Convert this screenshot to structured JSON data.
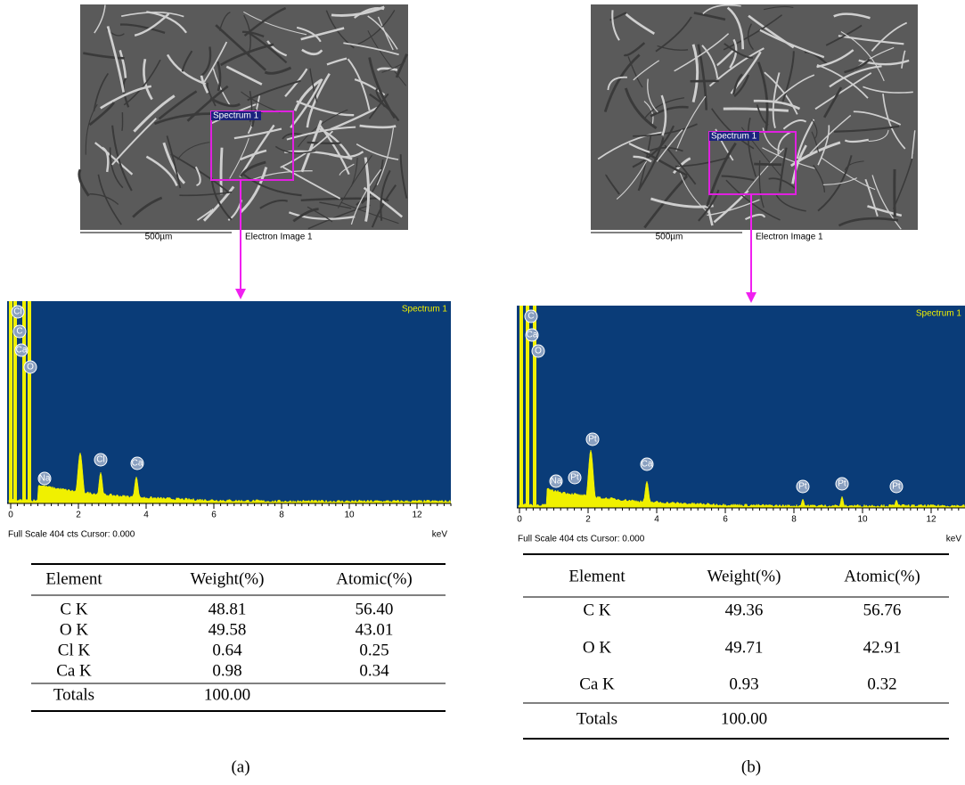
{
  "panels": [
    {
      "image": {
        "selection_label": "Spectrum 1",
        "scale_label": "500µm",
        "caption": "Electron Image 1"
      },
      "spectrum": {
        "title": "Spectrum 1",
        "axis_ticks": [
          0,
          2,
          4,
          6,
          8,
          10,
          12
        ],
        "unit": "keV",
        "footer": "Full Scale 404 cts Cursor: 0.000",
        "peak_labels": [
          "Cl",
          "C",
          "Ca",
          "O",
          "Na",
          "Cl",
          "Ca"
        ]
      },
      "table": {
        "header": [
          "Element",
          "Weight(%)",
          "Atomic(%)"
        ],
        "rows": [
          [
            "C  K",
            "48.81",
            "56.40"
          ],
          [
            "O  K",
            "49.58",
            "43.01"
          ],
          [
            "Cl  K",
            "0.64",
            "0.25"
          ],
          [
            "Ca  K",
            "0.98",
            "0.34"
          ]
        ],
        "totals": [
          "Totals",
          "100.00"
        ]
      },
      "label": "(a)"
    },
    {
      "image": {
        "selection_label": "Spectrum 1",
        "scale_label": "500µm",
        "caption": "Electron Image 1"
      },
      "spectrum": {
        "title": "Spectrum 1",
        "axis_ticks": [
          0,
          2,
          4,
          6,
          8,
          10,
          12
        ],
        "unit": "keV",
        "footer": "Full Scale 404 cts Cursor: 0.000",
        "peak_labels": [
          "C",
          "Ca",
          "O",
          "Na",
          "Pt",
          "Pt",
          "Ca",
          "Pt",
          "Pt",
          "Pt"
        ]
      },
      "table": {
        "header": [
          "Element",
          "Weight(%)",
          "Atomic(%)"
        ],
        "rows": [
          [
            "C  K",
            "49.36",
            "56.76"
          ],
          [
            "O  K",
            "49.71",
            "42.91"
          ],
          [
            "Ca  K",
            "0.93",
            "0.32"
          ]
        ],
        "totals": [
          "Totals",
          "100.00"
        ]
      },
      "label": "(b)"
    }
  ]
}
